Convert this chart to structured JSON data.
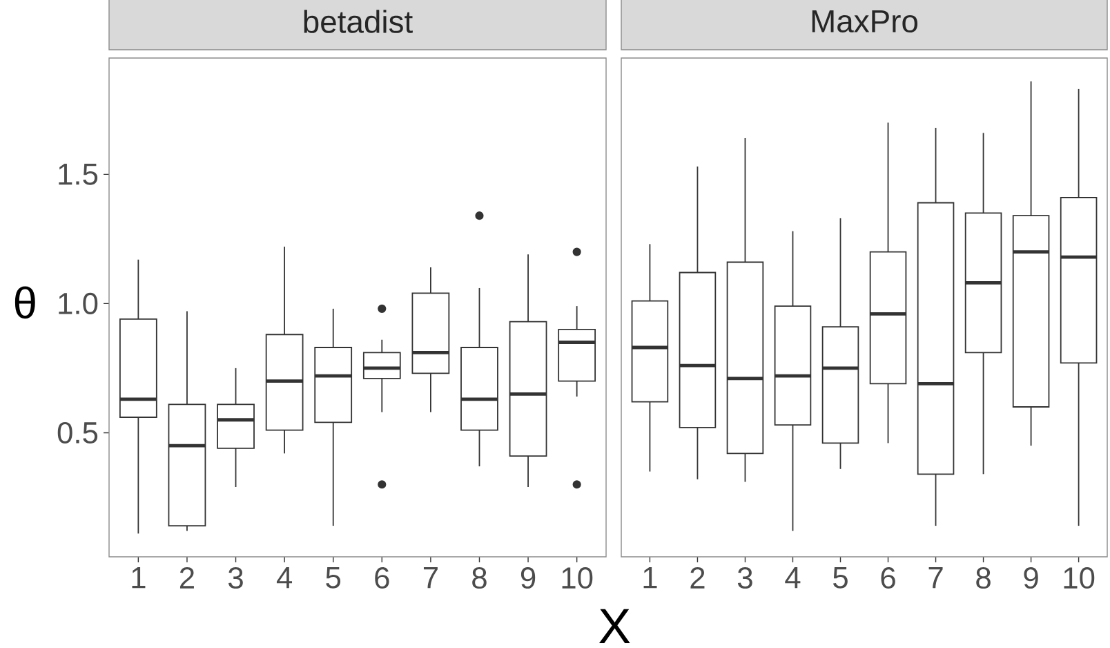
{
  "chart_data": [
    {
      "type": "box",
      "title": "betadist",
      "xlabel": "X",
      "ylabel": "θ",
      "categories": [
        "1",
        "2",
        "3",
        "4",
        "5",
        "6",
        "7",
        "8",
        "9",
        "10"
      ],
      "ylim": [
        0.02,
        1.95
      ],
      "yticks": [
        {
          "value": 0.5,
          "label": "0.5"
        },
        {
          "value": 1.0,
          "label": "1.0"
        },
        {
          "value": 1.5,
          "label": "1.5"
        }
      ],
      "boxes": [
        {
          "low": 0.11,
          "q1": 0.56,
          "median": 0.63,
          "q3": 0.94,
          "high": 1.17
        },
        {
          "low": 0.12,
          "q1": 0.14,
          "median": 0.45,
          "q3": 0.61,
          "high": 0.97
        },
        {
          "low": 0.29,
          "q1": 0.44,
          "median": 0.55,
          "q3": 0.61,
          "high": 0.75
        },
        {
          "low": 0.42,
          "q1": 0.51,
          "median": 0.7,
          "q3": 0.88,
          "high": 1.22
        },
        {
          "low": 0.14,
          "q1": 0.54,
          "median": 0.72,
          "q3": 0.83,
          "high": 0.98
        },
        {
          "low": 0.58,
          "q1": 0.71,
          "median": 0.75,
          "q3": 0.81,
          "high": 0.86,
          "outliers": [
            0.98,
            0.3
          ]
        },
        {
          "low": 0.58,
          "q1": 0.73,
          "median": 0.81,
          "q3": 1.04,
          "high": 1.14
        },
        {
          "low": 0.37,
          "q1": 0.51,
          "median": 0.63,
          "q3": 0.83,
          "high": 1.06,
          "outliers": [
            1.34
          ]
        },
        {
          "low": 0.29,
          "q1": 0.41,
          "median": 0.65,
          "q3": 0.93,
          "high": 1.19
        },
        {
          "low": 0.64,
          "q1": 0.7,
          "median": 0.85,
          "q3": 0.9,
          "high": 0.99,
          "outliers": [
            1.2,
            0.3
          ]
        }
      ]
    },
    {
      "type": "box",
      "title": "MaxPro",
      "categories": [
        "1",
        "2",
        "3",
        "4",
        "5",
        "6",
        "7",
        "8",
        "9",
        "10"
      ],
      "ylim": [
        0.02,
        1.95
      ],
      "tick_labels": "x",
      "boxes": [
        {
          "low": 0.35,
          "q1": 0.62,
          "median": 0.83,
          "q3": 1.01,
          "high": 1.23
        },
        {
          "low": 0.32,
          "q1": 0.52,
          "median": 0.76,
          "q3": 1.12,
          "high": 1.53
        },
        {
          "low": 0.31,
          "q1": 0.42,
          "median": 0.71,
          "q3": 1.16,
          "high": 1.64
        },
        {
          "low": 0.12,
          "q1": 0.53,
          "median": 0.72,
          "q3": 0.99,
          "high": 1.28
        },
        {
          "low": 0.36,
          "q1": 0.46,
          "median": 0.75,
          "q3": 0.91,
          "high": 1.33
        },
        {
          "low": 0.46,
          "q1": 0.69,
          "median": 0.96,
          "q3": 1.2,
          "high": 1.7
        },
        {
          "low": 0.14,
          "q1": 0.34,
          "median": 0.69,
          "q3": 1.39,
          "high": 1.68
        },
        {
          "low": 0.34,
          "q1": 0.81,
          "median": 1.08,
          "q3": 1.35,
          "high": 1.66
        },
        {
          "low": 0.45,
          "q1": 0.6,
          "median": 1.2,
          "q3": 1.34,
          "high": 1.86
        },
        {
          "low": 0.14,
          "q1": 0.77,
          "median": 1.18,
          "q3": 1.41,
          "high": 1.83
        }
      ]
    }
  ]
}
